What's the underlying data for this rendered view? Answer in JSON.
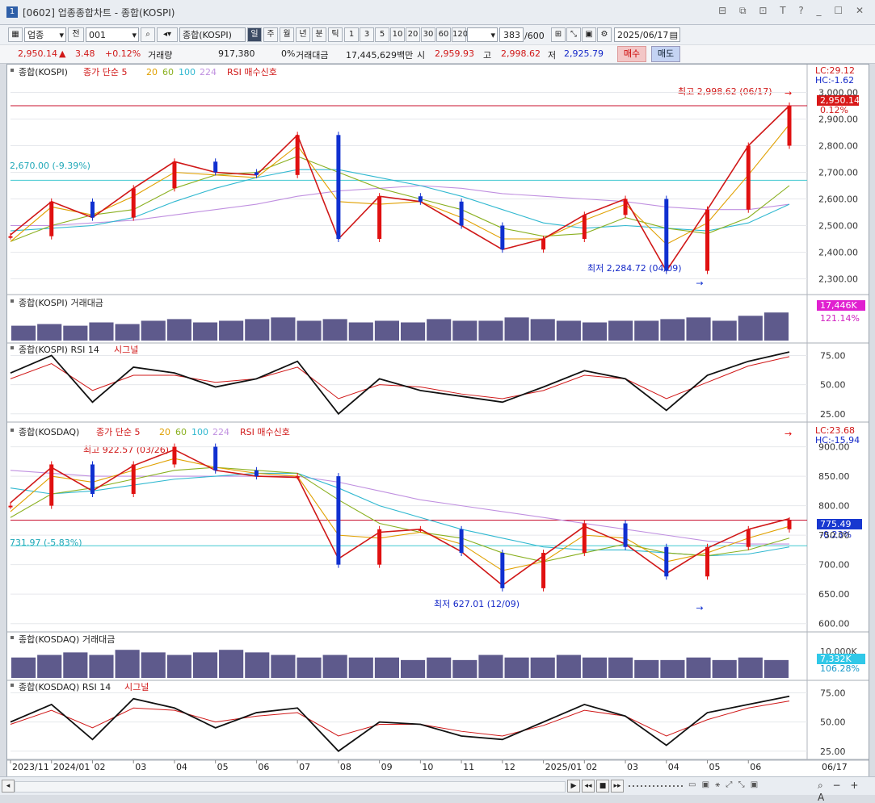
{
  "window": {
    "number": "1",
    "title": "[0602] 업종종합차트 - 종합(KOSPI)",
    "controls": "⊟ ⧉ ⊡ T ? _ ☐ ✕"
  },
  "toolbar": {
    "market_select": "업종",
    "prev_label": "전",
    "code_value": "001",
    "index_name": "종합(KOSPI)",
    "periods": [
      "일",
      "주",
      "월",
      "년",
      "분",
      "틱"
    ],
    "active_period": "일",
    "intervals": [
      "1",
      "3",
      "5",
      "10",
      "20",
      "30",
      "60",
      "120"
    ],
    "count": "383",
    "count_max": "/600",
    "date": "2025/06/17"
  },
  "quote": {
    "price": "2,950.14",
    "change": "3.48",
    "change_pct": "+0.12%",
    "volume_label": "거래량",
    "volume": "917,380",
    "volume_pct": "0%",
    "amount_label": "거래대금",
    "amount": "17,445,629백만",
    "open_label": "시",
    "open": "2,959.93",
    "high_label": "고",
    "high": "2,998.62",
    "low_label": "저",
    "low": "2,925.79",
    "buy_label": "매수",
    "sell_label": "매도"
  },
  "panes": {
    "kospi_price": {
      "legend": [
        "종합(KOSPI)",
        "종가 단순 5",
        "20",
        "60",
        "100",
        "224",
        "RSI 매수신호"
      ],
      "lc": "LC:29.12",
      "hc": "HC:-1.62",
      "high_note": "최고 2,998.62 (06/17)",
      "low_note": "최저 2,284.72 (04/09)",
      "hline_label": "2,670.00 (-9.39%)",
      "current_tag": "2,950.14",
      "current_pct": "0.12%",
      "y_ticks": [
        "3,000.00",
        "2,900.00",
        "2,800.00",
        "2,700.00",
        "2,600.00",
        "2,500.00",
        "2,400.00",
        "2,300.00"
      ]
    },
    "kospi_amount": {
      "legend": "종합(KOSPI) 거래대금",
      "tag": "17,446K",
      "pct": "121.14%"
    },
    "kospi_rsi": {
      "legend": [
        "종합(KOSPI) RSI 14",
        "시그널"
      ],
      "y_ticks": [
        "75.00",
        "50.00",
        "25.00"
      ]
    },
    "kosdaq_price": {
      "legend": [
        "종합(KOSDAQ)",
        "종가 단순 5",
        "20",
        "60",
        "100",
        "224",
        "RSI 매수신호"
      ],
      "lc": "LC:23.68",
      "hc": "HC:-15.94",
      "high_note": "최고 922.57 (03/26)",
      "low_note": "최저 627.01 (12/09)",
      "hline_label": "731.97 (-5.83%)",
      "current_tag": "775.49",
      "current_pct": "-0.23%",
      "y_ticks": [
        "900.00",
        "850.00",
        "800.00",
        "750.00",
        "700.00",
        "650.00",
        "600.00"
      ]
    },
    "kosdaq_amount": {
      "legend": "종합(KOSDAQ) 거래대금",
      "y_tick": "10,000K",
      "tag": "7,332K",
      "pct": "106.28%"
    },
    "kosdaq_rsi": {
      "legend": [
        "종합(KOSDAQ) RSI 14",
        "시그널"
      ],
      "y_ticks": [
        "75.00",
        "50.00",
        "25.00"
      ]
    }
  },
  "x_axis": {
    "labels": [
      "2023/11",
      "2024/01",
      "02",
      "03",
      "04",
      "05",
      "06",
      "07",
      "08",
      "09",
      "10",
      "11",
      "12",
      "2025/01",
      "02",
      "03",
      "04",
      "05",
      "06"
    ],
    "current": "06/17"
  },
  "colors": {
    "up": "#e01010",
    "down": "#1030d0",
    "ma5": "#d01818",
    "ma20": "#e0a000",
    "ma60": "#8ab020",
    "ma100": "#30b8d0",
    "ma224": "#c090e0",
    "volume": "#5e5a8c",
    "highlight_line": "#c8102e",
    "cyan_line": "#40c8d0"
  },
  "chart_data": [
    {
      "type": "line",
      "title": "종합(KOSPI)",
      "ylim": [
        2250,
        3050
      ],
      "x": [
        "2023/11",
        "2024/01",
        "02",
        "03",
        "04",
        "05",
        "06",
        "07",
        "08",
        "09",
        "10",
        "11",
        "12",
        "2025/01",
        "02",
        "03",
        "04",
        "05",
        "06",
        "06/17"
      ],
      "series": [
        {
          "name": "종합(KOSPI)",
          "values": [
            2460,
            2590,
            2530,
            2640,
            2740,
            2700,
            2690,
            2840,
            2450,
            2610,
            2590,
            2500,
            2410,
            2450,
            2540,
            2600,
            2330,
            2560,
            2800,
            2950
          ]
        },
        {
          "name": "종가 단순 5",
          "values": [
            2465,
            2590,
            2530,
            2640,
            2740,
            2700,
            2690,
            2840,
            2450,
            2610,
            2590,
            2500,
            2410,
            2450,
            2540,
            2600,
            2330,
            2560,
            2800,
            2950
          ]
        },
        {
          "name": "20",
          "values": [
            2440,
            2570,
            2540,
            2610,
            2700,
            2690,
            2680,
            2800,
            2590,
            2580,
            2590,
            2530,
            2450,
            2450,
            2520,
            2580,
            2430,
            2510,
            2690,
            2880
          ]
        },
        {
          "name": "60",
          "values": [
            2440,
            2500,
            2540,
            2560,
            2640,
            2690,
            2700,
            2760,
            2700,
            2640,
            2600,
            2560,
            2490,
            2460,
            2470,
            2530,
            2490,
            2470,
            2530,
            2650
          ]
        },
        {
          "name": "100",
          "values": [
            2480,
            2490,
            2500,
            2530,
            2590,
            2640,
            2680,
            2710,
            2710,
            2680,
            2650,
            2610,
            2560,
            2510,
            2490,
            2500,
            2490,
            2480,
            2510,
            2580
          ]
        },
        {
          "name": "224",
          "values": [
            2500,
            2500,
            2510,
            2520,
            2540,
            2560,
            2580,
            2610,
            2630,
            2640,
            2650,
            2640,
            2620,
            2610,
            2600,
            2590,
            2570,
            2560,
            2560,
            2580
          ]
        }
      ],
      "annotations": {
        "high": 2998.62,
        "low": 2284.72,
        "hline": 2670.0,
        "current": 2950.14
      }
    },
    {
      "type": "bar",
      "title": "종합(KOSPI) 거래대금",
      "values": [
        9,
        10,
        9,
        11,
        10,
        12,
        13,
        11,
        12,
        13,
        14,
        12,
        13,
        11,
        12,
        11,
        13,
        12,
        12,
        14,
        13,
        12,
        11,
        12,
        12,
        13,
        14,
        12,
        15,
        17
      ]
    },
    {
      "type": "line",
      "title": "종합(KOSPI) RSI 14",
      "ylim": [
        20,
        85
      ],
      "series": [
        {
          "name": "RSI 14",
          "values": [
            60,
            75,
            35,
            65,
            60,
            48,
            55,
            70,
            25,
            55,
            45,
            40,
            35,
            48,
            62,
            55,
            28,
            58,
            70,
            78
          ]
        },
        {
          "name": "시그널",
          "values": [
            55,
            68,
            45,
            58,
            58,
            52,
            55,
            65,
            38,
            50,
            48,
            42,
            38,
            45,
            58,
            55,
            38,
            52,
            66,
            74
          ]
        }
      ]
    },
    {
      "type": "line",
      "title": "종합(KOSDAQ)",
      "ylim": [
        590,
        935
      ],
      "x": [
        "2023/11",
        "2024/01",
        "02",
        "03",
        "04",
        "05",
        "06",
        "07",
        "08",
        "09",
        "10",
        "11",
        "12",
        "2025/01",
        "02",
        "03",
        "04",
        "05",
        "06",
        "06/17"
      ],
      "series": [
        {
          "name": "종합(KOSDAQ)",
          "values": [
            800,
            870,
            820,
            870,
            900,
            860,
            850,
            850,
            700,
            760,
            760,
            720,
            660,
            720,
            770,
            730,
            680,
            730,
            760,
            775
          ]
        },
        {
          "name": "종가 단순 5",
          "values": [
            805,
            865,
            825,
            868,
            895,
            860,
            850,
            848,
            710,
            755,
            760,
            722,
            665,
            715,
            765,
            735,
            685,
            728,
            760,
            778
          ]
        },
        {
          "name": "20",
          "values": [
            790,
            850,
            840,
            860,
            880,
            865,
            855,
            850,
            750,
            745,
            755,
            735,
            690,
            705,
            750,
            745,
            705,
            720,
            745,
            765
          ]
        },
        {
          "name": "60",
          "values": [
            780,
            820,
            830,
            845,
            860,
            865,
            860,
            855,
            810,
            770,
            755,
            745,
            720,
            705,
            720,
            735,
            720,
            715,
            725,
            745
          ]
        },
        {
          "name": "100",
          "values": [
            830,
            820,
            825,
            835,
            845,
            850,
            855,
            855,
            830,
            800,
            780,
            760,
            745,
            730,
            725,
            725,
            720,
            715,
            718,
            730
          ]
        },
        {
          "name": "224",
          "values": [
            860,
            855,
            850,
            850,
            850,
            850,
            850,
            850,
            840,
            825,
            810,
            800,
            790,
            780,
            770,
            760,
            750,
            740,
            735,
            735
          ]
        }
      ],
      "annotations": {
        "high": 922.57,
        "low": 627.01,
        "hline": 731.97,
        "current": 775.49
      }
    },
    {
      "type": "bar",
      "title": "종합(KOSDAQ) 거래대금",
      "values": [
        8,
        9,
        10,
        9,
        11,
        10,
        9,
        10,
        11,
        10,
        9,
        8,
        9,
        8,
        8,
        7,
        8,
        7,
        9,
        8,
        8,
        9,
        8,
        8,
        7,
        7,
        8,
        7,
        8,
        7
      ]
    },
    {
      "type": "line",
      "title": "종합(KOSDAQ) RSI 14",
      "ylim": [
        20,
        85
      ],
      "series": [
        {
          "name": "RSI 14",
          "values": [
            50,
            65,
            35,
            70,
            62,
            45,
            58,
            62,
            25,
            50,
            48,
            38,
            35,
            50,
            65,
            55,
            30,
            58,
            65,
            72
          ]
        },
        {
          "name": "시그널",
          "values": [
            48,
            60,
            45,
            62,
            60,
            50,
            55,
            58,
            38,
            48,
            48,
            42,
            38,
            47,
            60,
            55,
            38,
            52,
            62,
            68
          ]
        }
      ]
    }
  ]
}
